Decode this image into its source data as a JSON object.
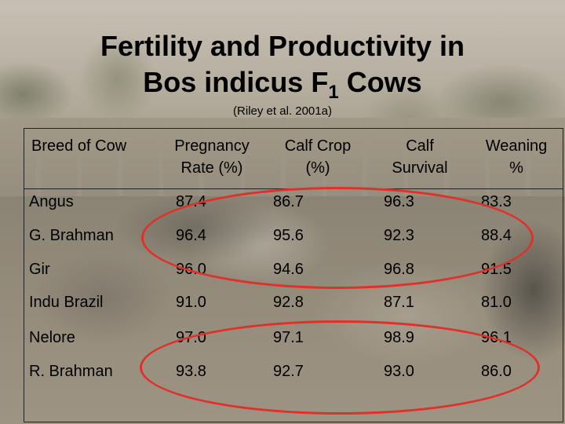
{
  "slide": {
    "title_line1": "Fertility and Productivity in",
    "title_line2_prefix": "Bos indicus F",
    "title_subscript": "1",
    "title_line2_suffix": " Cows",
    "citation": "(Riley et al. 2001a)"
  },
  "table": {
    "headers": [
      [
        "Breed of Cow"
      ],
      [
        "Pregnancy",
        "Rate (%)"
      ],
      [
        "Calf Crop",
        "(%)"
      ],
      [
        "Calf",
        "Survival"
      ],
      [
        "Weaning",
        "%"
      ]
    ],
    "rows": [
      [
        "Angus",
        "87.4",
        "86.7",
        "96.3",
        "83.3"
      ],
      [
        "G. Brahman",
        "96.4",
        "95.6",
        "92.3",
        "88.4"
      ],
      [
        "Gir",
        "96.0",
        "94.6",
        "96.8",
        "91.5"
      ],
      [
        "Indu Brazil",
        "91.0",
        "92.8",
        "87.1",
        "81.0"
      ],
      [
        "Nelore",
        "97.0",
        "97.1",
        "98.9",
        "96.1"
      ],
      [
        "R. Brahman",
        "93.8",
        "92.7",
        "93.0",
        "86.0"
      ]
    ]
  },
  "colors": {
    "annotation": "#e0302a",
    "text": "#000000",
    "rule": "#222222"
  }
}
